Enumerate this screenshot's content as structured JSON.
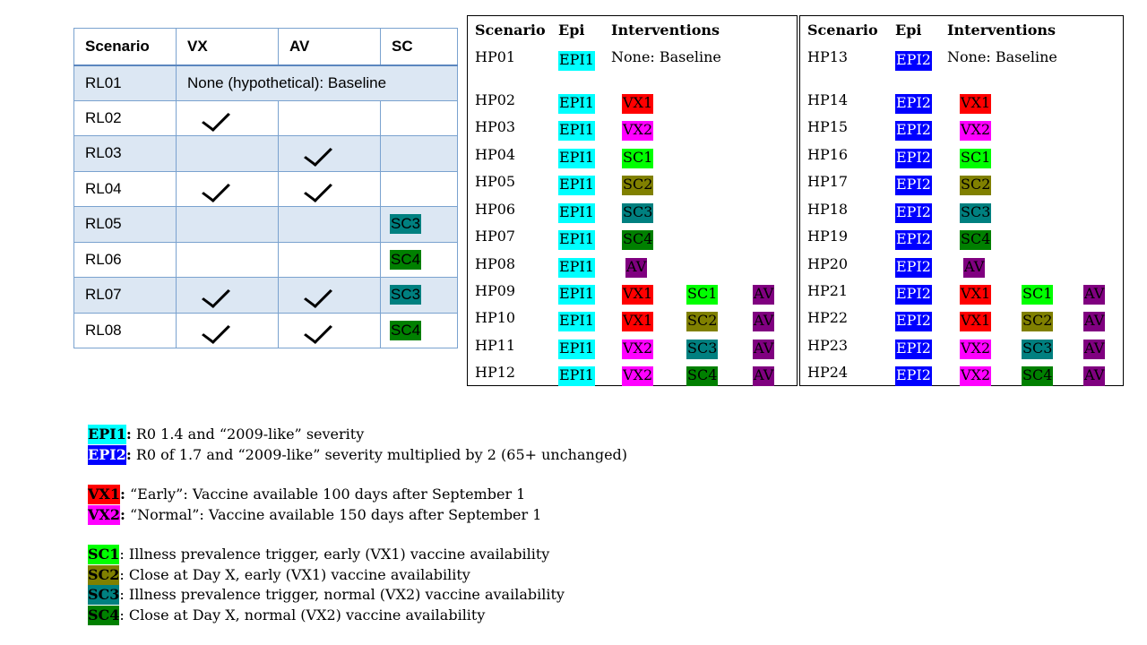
{
  "colors": {
    "EPI1": "#00ffff",
    "EPI2": "#0000ff",
    "VX1": "#ff0000",
    "VX2": "#ff00ff",
    "SC1": "#00ff00",
    "SC2": "#808000",
    "SC3": "#008080",
    "SC4": "#008000",
    "AV": "#800080"
  },
  "rl_table": {
    "headers": [
      "Scenario",
      "VX",
      "AV",
      "SC"
    ],
    "baseline_text": "None (hypothetical): Baseline",
    "rows": [
      {
        "id": "RL01",
        "vx": false,
        "av": false,
        "sc": "",
        "baseline": true
      },
      {
        "id": "RL02",
        "vx": true,
        "av": false,
        "sc": ""
      },
      {
        "id": "RL03",
        "vx": false,
        "av": true,
        "sc": ""
      },
      {
        "id": "RL04",
        "vx": true,
        "av": true,
        "sc": ""
      },
      {
        "id": "RL05",
        "vx": false,
        "av": false,
        "sc": "SC3"
      },
      {
        "id": "RL06",
        "vx": false,
        "av": false,
        "sc": "SC4"
      },
      {
        "id": "RL07",
        "vx": true,
        "av": true,
        "sc": "SC3"
      },
      {
        "id": "RL08",
        "vx": true,
        "av": true,
        "sc": "SC4"
      }
    ]
  },
  "hp_tables": [
    {
      "headers": {
        "scenario": "Scenario",
        "epi": "Epi",
        "interventions": "Interventions"
      },
      "rows": [
        {
          "id": "HP01",
          "epi": "EPI1",
          "baseline": "None: Baseline"
        },
        {
          "id": "HP02",
          "epi": "EPI1",
          "vx": "VX1"
        },
        {
          "id": "HP03",
          "epi": "EPI1",
          "vx": "VX2"
        },
        {
          "id": "HP04",
          "epi": "EPI1",
          "vx": "SC1"
        },
        {
          "id": "HP05",
          "epi": "EPI1",
          "vx": "SC2"
        },
        {
          "id": "HP06",
          "epi": "EPI1",
          "vx": "SC3"
        },
        {
          "id": "HP07",
          "epi": "EPI1",
          "vx": "SC4"
        },
        {
          "id": "HP08",
          "epi": "EPI1",
          "vx": "AV"
        },
        {
          "id": "HP09",
          "epi": "EPI1",
          "vx": "VX1",
          "sc": "SC1",
          "av": "AV"
        },
        {
          "id": "HP10",
          "epi": "EPI1",
          "vx": "VX1",
          "sc": "SC2",
          "av": "AV"
        },
        {
          "id": "HP11",
          "epi": "EPI1",
          "vx": "VX2",
          "sc": "SC3",
          "av": "AV"
        },
        {
          "id": "HP12",
          "epi": "EPI1",
          "vx": "VX2",
          "sc": "SC4",
          "av": "AV"
        }
      ]
    },
    {
      "headers": {
        "scenario": "Scenario",
        "epi": "Epi",
        "interventions": "Interventions"
      },
      "rows": [
        {
          "id": "HP13",
          "epi": "EPI2",
          "baseline": "None: Baseline"
        },
        {
          "id": "HP14",
          "epi": "EPI2",
          "vx": "VX1"
        },
        {
          "id": "HP15",
          "epi": "EPI2",
          "vx": "VX2"
        },
        {
          "id": "HP16",
          "epi": "EPI2",
          "vx": "SC1"
        },
        {
          "id": "HP17",
          "epi": "EPI2",
          "vx": "SC2"
        },
        {
          "id": "HP18",
          "epi": "EPI2",
          "vx": "SC3"
        },
        {
          "id": "HP19",
          "epi": "EPI2",
          "vx": "SC4"
        },
        {
          "id": "HP20",
          "epi": "EPI2",
          "vx": "AV"
        },
        {
          "id": "HP21",
          "epi": "EPI2",
          "vx": "VX1",
          "sc": "SC1",
          "av": "AV"
        },
        {
          "id": "HP22",
          "epi": "EPI2",
          "vx": "VX1",
          "sc": "SC2",
          "av": "AV"
        },
        {
          "id": "HP23",
          "epi": "EPI2",
          "vx": "VX2",
          "sc": "SC3",
          "av": "AV"
        },
        {
          "id": "HP24",
          "epi": "EPI2",
          "vx": "VX2",
          "sc": "SC4",
          "av": "AV"
        }
      ]
    }
  ],
  "legend": [
    {
      "tag": "EPI1",
      "sep": ":",
      "text": " R0 1.4 and “2009-like” severity"
    },
    {
      "tag": "EPI2",
      "sep": ":",
      "text": " R0 of 1.7 and “2009-like” severity multiplied by 2 (65+ unchanged)"
    },
    {
      "gap": true
    },
    {
      "tag": "VX1",
      "sep": ":",
      "text": " “Early”: Vaccine available 100 days after September 1"
    },
    {
      "tag": "VX2",
      "sep": ":",
      "text": " “Normal”: Vaccine available 150 days after September 1"
    },
    {
      "gap": true
    },
    {
      "tag": "SC1",
      "sep": "",
      "text": ": Illness prevalence trigger, early (VX1) vaccine availability"
    },
    {
      "tag": "SC2",
      "sep": "",
      "text": ": Close at Day X, early (VX1) vaccine availability"
    },
    {
      "tag": "SC3",
      "sep": "",
      "text": ": Illness prevalence trigger, normal (VX2) vaccine availability"
    },
    {
      "tag": "SC4",
      "sep": "",
      "text": ": Close at Day X, normal (VX2) vaccine availability"
    }
  ]
}
